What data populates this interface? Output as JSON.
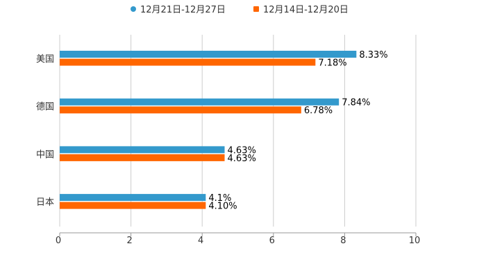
{
  "chart_data": {
    "type": "bar",
    "orientation": "horizontal",
    "categories": [
      "美国",
      "德国",
      "中国",
      "日本"
    ],
    "series": [
      {
        "name": "12月21日-12月27日",
        "color": "#3399cc",
        "values": [
          8.33,
          7.84,
          4.63,
          4.1
        ],
        "labels": [
          "8.33%",
          "7.84%",
          "4.63%",
          "4.1%"
        ]
      },
      {
        "name": "12月14日-12月20日",
        "color": "#ff6600",
        "values": [
          7.18,
          6.78,
          4.63,
          4.1
        ],
        "labels": [
          "7.18%",
          "6.78%",
          "4.63%",
          "4.10%"
        ]
      }
    ],
    "xlim": [
      0,
      10
    ],
    "xticks": [
      "0",
      "2",
      "4",
      "6",
      "8",
      "10"
    ],
    "grid": true,
    "legend": "top-center",
    "title": "",
    "xlabel": "",
    "ylabel": ""
  }
}
